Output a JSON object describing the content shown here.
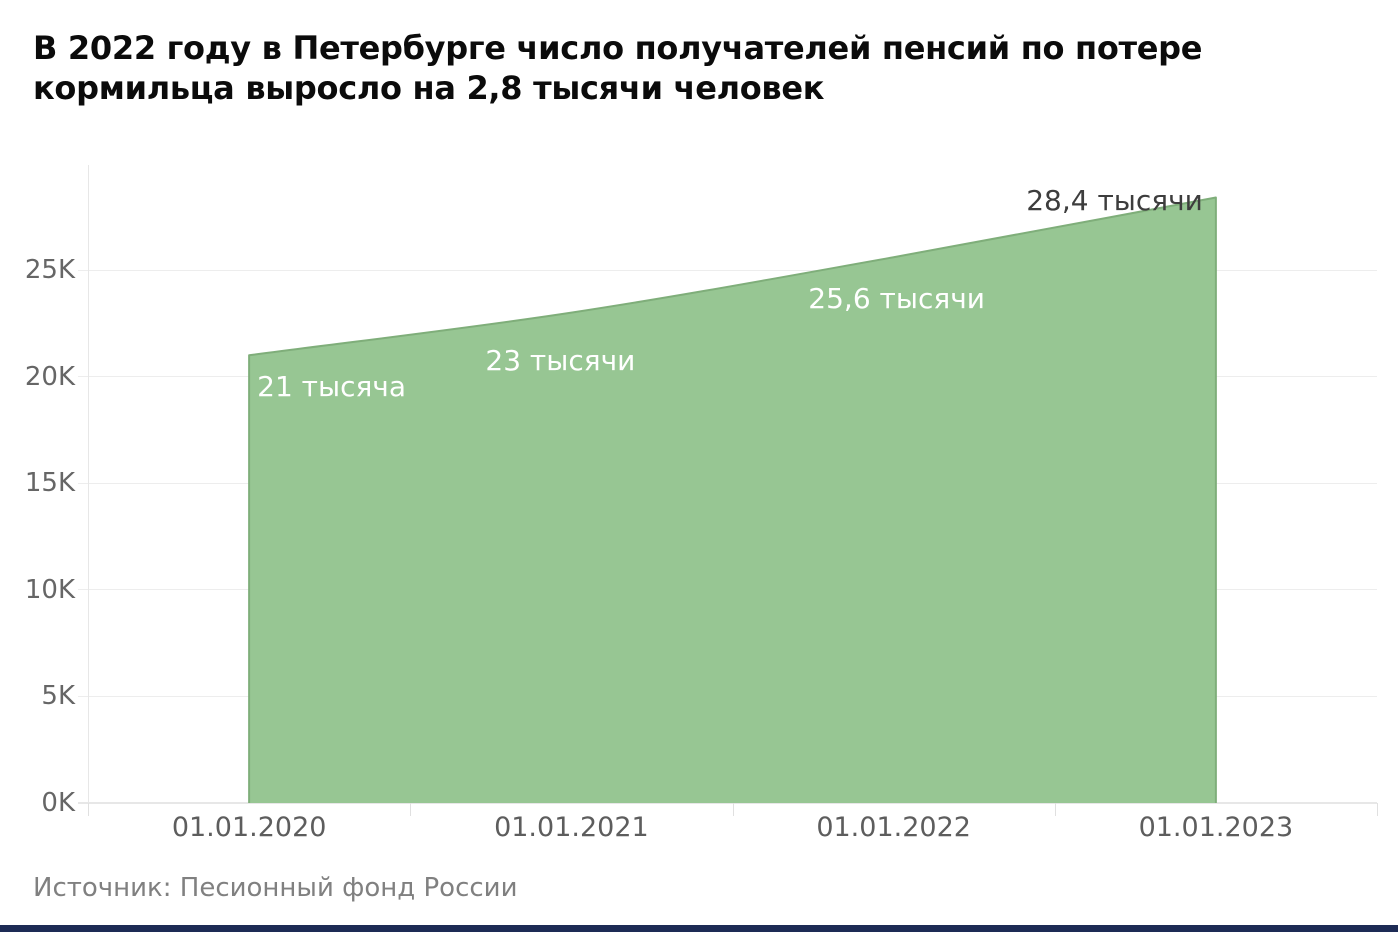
{
  "page": {
    "title_lines": [
      "В 2022 году в Петербурге число получателей пенсий по потере",
      "кормильца выросло на 2,8 тысячи человек"
    ],
    "source": "Источник: Песионный фонд России"
  },
  "chart_data": {
    "type": "area",
    "title": "В 2022 году в Петербурге число получателей пенсий по потере кормильца выросло на 2,8 тысячи человек",
    "x_labels": [
      "01.01.2020",
      "01.01.2021",
      "01.01.2022",
      "01.01.2023"
    ],
    "values": [
      21000,
      23000,
      25600,
      28400
    ],
    "point_labels": [
      {
        "text": "21 тысяча",
        "placement": "inside"
      },
      {
        "text": "23 тысячи",
        "placement": "inside"
      },
      {
        "text": "25,6 тысячи",
        "placement": "inside"
      },
      {
        "text": "28,4 тысячи",
        "placement": "outside"
      }
    ],
    "y_ticks": [
      {
        "label": "0K",
        "value": 0
      },
      {
        "label": "5K",
        "value": 5000
      },
      {
        "label": "10K",
        "value": 10000
      },
      {
        "label": "15K",
        "value": 15000
      },
      {
        "label": "20K",
        "value": 20000
      },
      {
        "label": "25K",
        "value": 25000
      }
    ],
    "ylim": [
      0,
      28400
    ],
    "grid": true,
    "legend": "none",
    "source": "Источник: Песионный фонд России",
    "colors": {
      "area_fill": "#97c693",
      "area_stroke": "#7fae7a",
      "label_inside": "#ffffff",
      "label_outside": "#3d3d3d",
      "grid": "#ededed",
      "baseline": "#e7e7e7",
      "axis_line": "#e7e7e7",
      "tick": "#e0e0e0",
      "y_tick_text": "#666666",
      "x_tick_text": "#5d5d5d",
      "title_text": "#0b0b0b",
      "source_text": "#808080",
      "footer_bar": "#1d2b55"
    }
  }
}
